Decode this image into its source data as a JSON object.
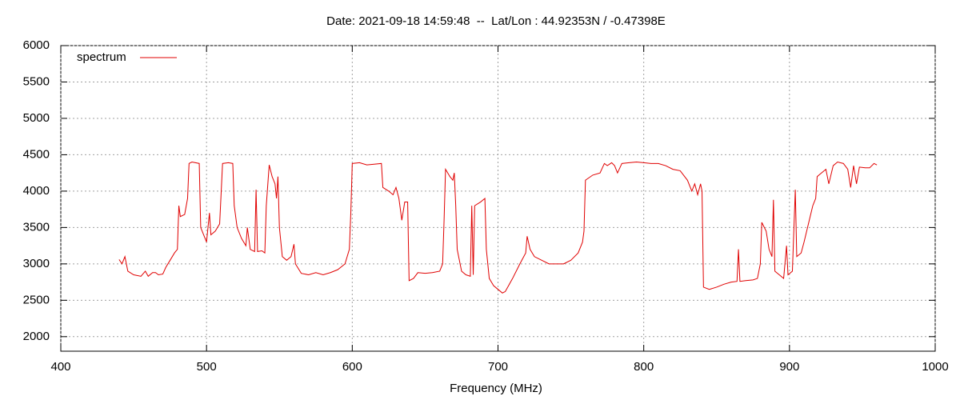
{
  "chart_data": {
    "type": "line",
    "title": "Date: 2021-09-18 14:59:48  --  Lat/Lon : 44.92353N / -0.47398E",
    "xlabel": "Frequency (MHz)",
    "xlim": [
      400,
      1000
    ],
    "xticks": [
      400,
      500,
      600,
      700,
      800,
      900,
      1000
    ],
    "ylim": [
      1800,
      6000
    ],
    "yticks": [
      2000,
      2500,
      3000,
      3500,
      4000,
      4500,
      5000,
      5500,
      6000
    ],
    "grid": true,
    "legend": "upper left",
    "x": [
      440,
      442,
      444,
      446,
      450,
      455,
      458,
      460,
      463,
      465,
      467,
      470,
      472,
      475,
      478,
      480,
      481,
      482,
      485,
      487,
      488,
      490,
      495,
      496,
      498,
      500,
      502,
      503,
      506,
      509,
      511,
      515,
      518,
      519,
      521,
      524,
      527,
      528,
      530,
      533,
      534,
      535,
      538,
      540,
      541,
      543,
      545,
      547,
      548,
      549,
      550,
      552,
      555,
      558,
      560,
      561,
      565,
      570,
      575,
      580,
      585,
      590,
      595,
      598,
      599,
      600,
      605,
      610,
      615,
      620,
      621,
      625,
      628,
      630,
      632,
      634,
      636,
      638,
      639,
      642,
      645,
      650,
      655,
      660,
      662,
      663,
      664,
      667,
      669,
      670,
      671,
      672,
      675,
      678,
      681,
      682,
      683,
      684,
      688,
      691,
      692,
      694,
      697,
      700,
      703,
      705,
      710,
      715,
      719,
      720,
      722,
      725,
      730,
      735,
      740,
      745,
      750,
      755,
      758,
      759,
      760,
      765,
      770,
      773,
      775,
      778,
      780,
      782,
      785,
      790,
      795,
      800,
      805,
      810,
      815,
      820,
      825,
      830,
      833,
      835,
      837,
      839,
      840,
      841,
      845,
      850,
      855,
      860,
      864,
      865,
      866,
      870,
      875,
      878,
      880,
      881,
      884,
      886,
      888,
      889,
      890,
      893,
      896,
      898,
      899,
      902,
      904,
      905,
      908,
      910,
      913,
      916,
      918,
      919,
      922,
      925,
      927,
      930,
      933,
      937,
      940,
      942,
      944,
      946,
      948,
      952,
      955,
      958,
      960
    ],
    "series": [
      {
        "name": "spectrum",
        "color": "#e00000",
        "values": [
          3060,
          3000,
          3100,
          2900,
          2850,
          2830,
          2900,
          2830,
          2880,
          2880,
          2850,
          2860,
          2950,
          3050,
          3150,
          3200,
          3800,
          3650,
          3680,
          3900,
          4380,
          4400,
          4380,
          3500,
          3400,
          3300,
          3700,
          3400,
          3450,
          3550,
          4380,
          4390,
          4380,
          3800,
          3500,
          3350,
          3250,
          3500,
          3200,
          3170,
          4020,
          3170,
          3180,
          3150,
          3800,
          4360,
          4200,
          4100,
          3900,
          4200,
          3500,
          3100,
          3050,
          3100,
          3270,
          3000,
          2870,
          2850,
          2880,
          2850,
          2880,
          2920,
          3000,
          3200,
          3700,
          4380,
          4390,
          4360,
          4370,
          4380,
          4050,
          4000,
          3950,
          4050,
          3900,
          3600,
          3850,
          3850,
          2770,
          2800,
          2880,
          2870,
          2880,
          2900,
          3000,
          3600,
          4300,
          4200,
          4150,
          4250,
          3800,
          3200,
          2900,
          2850,
          2830,
          3800,
          2850,
          3800,
          3850,
          3900,
          3200,
          2800,
          2700,
          2650,
          2600,
          2620,
          2800,
          3000,
          3150,
          3380,
          3200,
          3100,
          3050,
          3000,
          3000,
          3000,
          3050,
          3150,
          3300,
          3450,
          4150,
          4220,
          4250,
          4380,
          4350,
          4390,
          4350,
          4250,
          4380,
          4390,
          4400,
          4390,
          4380,
          4380,
          4350,
          4300,
          4280,
          4150,
          4000,
          4100,
          3950,
          4100,
          4000,
          2680,
          2650,
          2680,
          2720,
          2750,
          2760,
          3200,
          2760,
          2770,
          2780,
          2800,
          3000,
          3570,
          3450,
          3200,
          3100,
          3880,
          2900,
          2850,
          2800,
          3250,
          2850,
          2900,
          4020,
          3100,
          3150,
          3300,
          3550,
          3800,
          3900,
          4200,
          4250,
          4300,
          4100,
          4350,
          4400,
          4380,
          4300,
          4050,
          4350,
          4100,
          4330,
          4320,
          4320,
          4380,
          4360
        ]
      }
    ]
  }
}
